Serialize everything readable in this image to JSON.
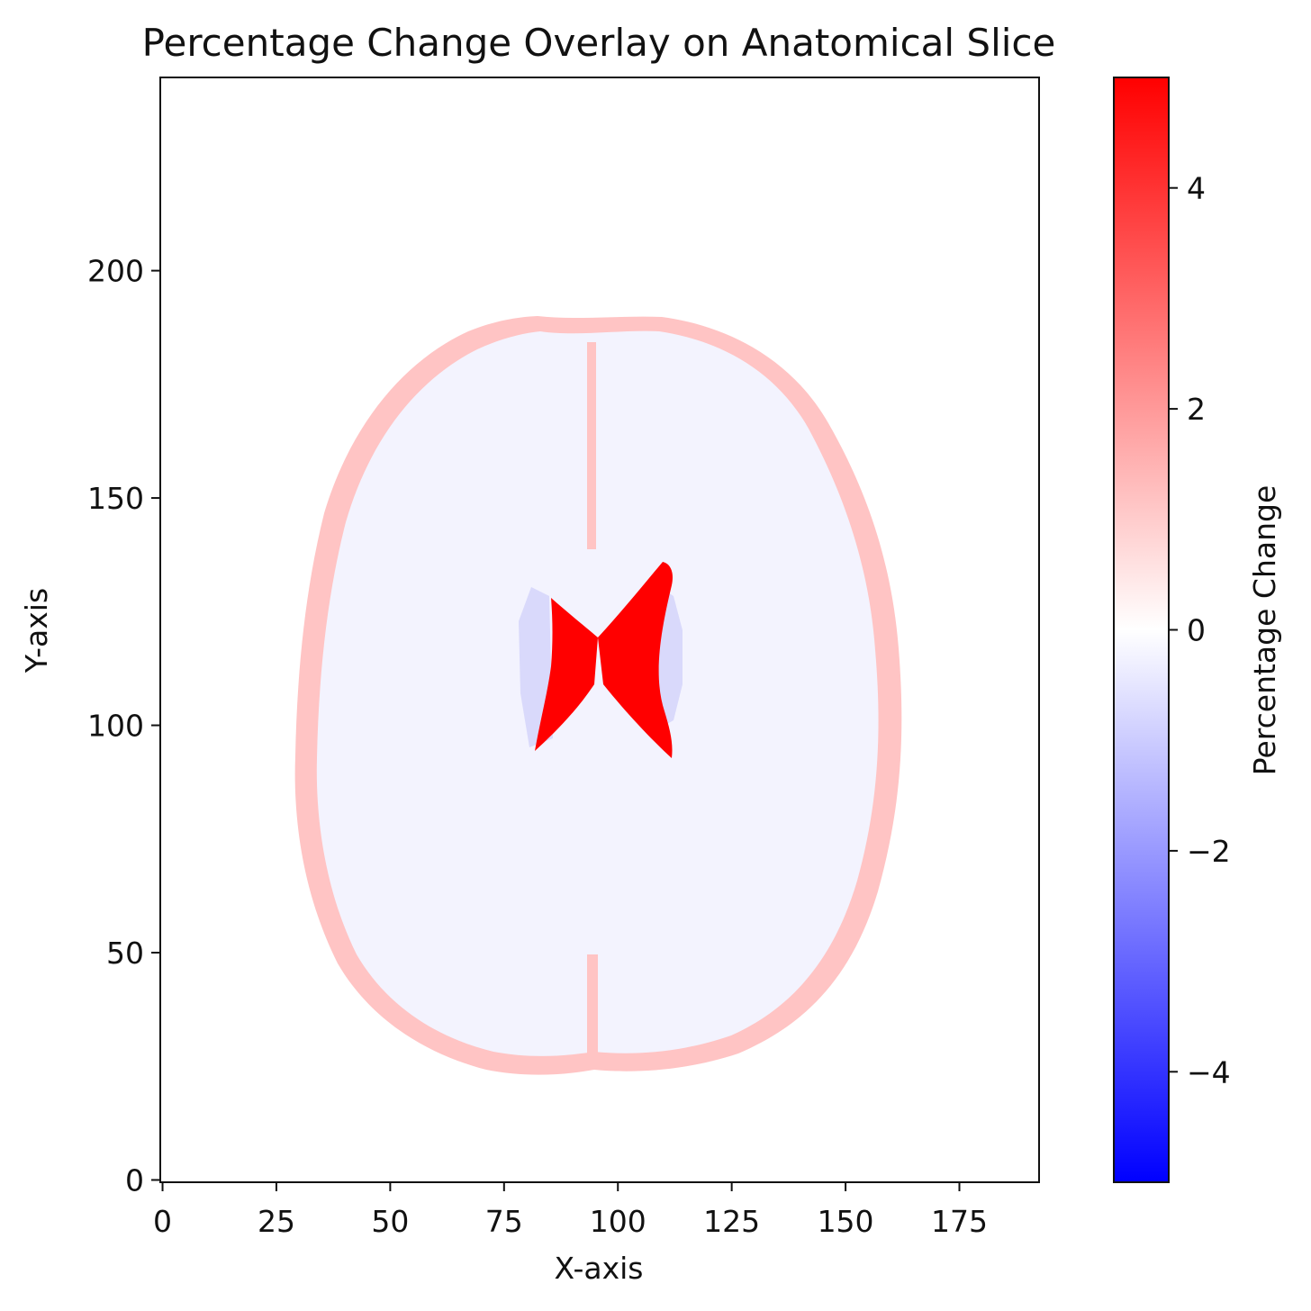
{
  "chart_data": {
    "type": "heatmap",
    "title": "Percentage Change Overlay on Anatomical Slice",
    "xlabel": "X-axis",
    "ylabel": "Y-axis",
    "xlim": [
      -0.5,
      192.5
    ],
    "ylim": [
      -0.5,
      242.5
    ],
    "x_ticks": [
      0,
      25,
      50,
      75,
      100,
      125,
      150,
      175
    ],
    "y_ticks": [
      0,
      50,
      100,
      150,
      200
    ],
    "colormap": "bwr",
    "colors": {
      "negative": "#0000ff",
      "zero": "#ffffff",
      "positive": "#ff0000"
    },
    "colorbar": {
      "label": "Percentage Change",
      "range": [
        -5,
        5
      ],
      "ticks": [
        4,
        2,
        0,
        -2,
        -4
      ],
      "tick_labels": [
        "4",
        "2",
        "0",
        "−2",
        "−4"
      ]
    },
    "regions": [
      {
        "name": "brain-tissue",
        "value": -0.2,
        "description_shape": "brain slice interior",
        "center": [
          96,
          110
        ],
        "radius": [
          62,
          82
        ]
      },
      {
        "name": "brain-rim",
        "value": 1.0
      },
      {
        "name": "ventricles-core",
        "value": 5.0
      },
      {
        "name": "periventricular",
        "value": -0.7
      }
    ]
  }
}
